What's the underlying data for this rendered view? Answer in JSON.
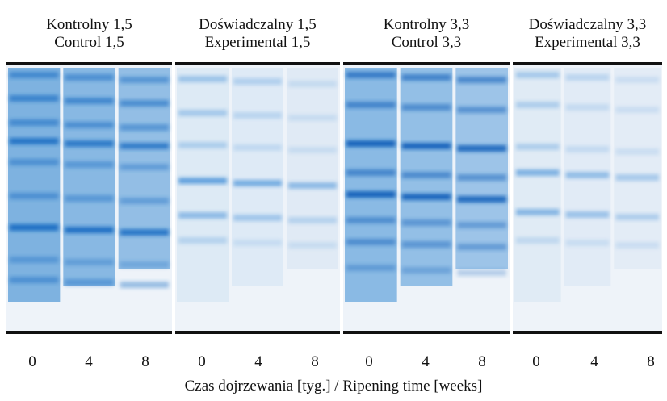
{
  "panels": [
    {
      "title_pl": "Kontrolny 1,5",
      "title_en": "Control 1,5",
      "lanes": [
        "0",
        "4",
        "8"
      ]
    },
    {
      "title_pl": "Doświadczalny 1,5",
      "title_en": "Experimental 1,5",
      "lanes": [
        "0",
        "4",
        "8"
      ]
    },
    {
      "title_pl": "Kontrolny 3,3",
      "title_en": "Control 3,3",
      "lanes": [
        "0",
        "4",
        "8"
      ]
    },
    {
      "title_pl": "Doświadczalny 3,3",
      "title_en": "Experimental 3,3",
      "lanes": [
        "0",
        "4",
        "8"
      ]
    }
  ],
  "caption": "Czas dojrzewania [tyg.] / Ripening time [weeks]"
}
